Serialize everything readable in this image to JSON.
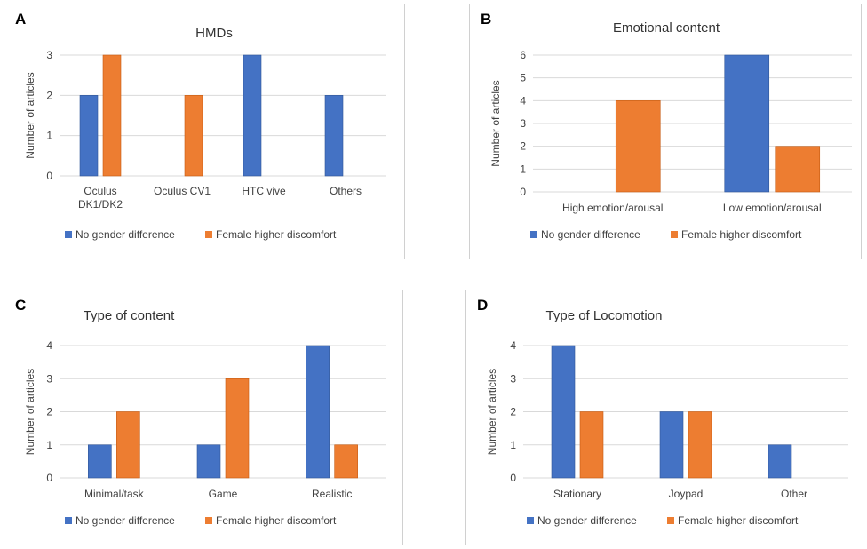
{
  "colors": {
    "no_diff": "#4472C4",
    "female": "#ED7D31",
    "grid": "#d9d9d9",
    "bar_border": "#2f5597",
    "bar_border_f": "#c55a11"
  },
  "legend": {
    "no_gender_difference": "No gender difference",
    "female_higher_discomfort": "Female higher discomfort"
  },
  "chart_data": [
    {
      "panel": "A",
      "type": "bar",
      "title": "HMDs",
      "ylabel": "Number of articles",
      "xlabel": "",
      "ylim": [
        0,
        3
      ],
      "yticks": [
        0,
        1,
        2,
        3
      ],
      "categories": [
        [
          "Oculus",
          "DK1/DK2"
        ],
        [
          "Oculus CV1"
        ],
        [
          "HTC vive"
        ],
        [
          "Others"
        ]
      ],
      "series": [
        {
          "name": "No gender difference",
          "values": [
            2,
            0,
            3,
            2
          ]
        },
        {
          "name": "Female higher discomfort",
          "values": [
            3,
            2,
            0,
            0
          ]
        }
      ],
      "legend_position": "bottom"
    },
    {
      "panel": "B",
      "type": "bar",
      "title": "Emotional content",
      "ylabel": "Number of articles",
      "xlabel": "",
      "ylim": [
        0,
        6
      ],
      "yticks": [
        0,
        1,
        2,
        3,
        4,
        5,
        6
      ],
      "categories": [
        [
          "High emotion/arousal"
        ],
        [
          "Low emotion/arousal"
        ]
      ],
      "series": [
        {
          "name": "No gender difference",
          "values": [
            0,
            6
          ]
        },
        {
          "name": "Female higher discomfort",
          "values": [
            4,
            2
          ]
        }
      ],
      "legend_position": "bottom"
    },
    {
      "panel": "C",
      "type": "bar",
      "title": "Type of content",
      "ylabel": "Number of articles",
      "xlabel": "",
      "ylim": [
        0,
        4
      ],
      "yticks": [
        0,
        1,
        2,
        3,
        4
      ],
      "categories": [
        [
          "Minimal/task"
        ],
        [
          "Game"
        ],
        [
          "Realistic"
        ]
      ],
      "series": [
        {
          "name": "No gender difference",
          "values": [
            1,
            1,
            4
          ]
        },
        {
          "name": "Female higher discomfort",
          "values": [
            2,
            3,
            1
          ]
        }
      ],
      "legend_position": "bottom"
    },
    {
      "panel": "D",
      "type": "bar",
      "title": "Type of Locomotion",
      "ylabel": "Number of articles",
      "xlabel": "",
      "ylim": [
        0,
        4
      ],
      "yticks": [
        0,
        1,
        2,
        3,
        4
      ],
      "categories": [
        [
          "Stationary"
        ],
        [
          "Joypad"
        ],
        [
          "Other"
        ]
      ],
      "series": [
        {
          "name": "No gender difference",
          "values": [
            4,
            2,
            1
          ]
        },
        {
          "name": "Female higher discomfort",
          "values": [
            2,
            2,
            0
          ]
        }
      ],
      "legend_position": "bottom"
    }
  ]
}
